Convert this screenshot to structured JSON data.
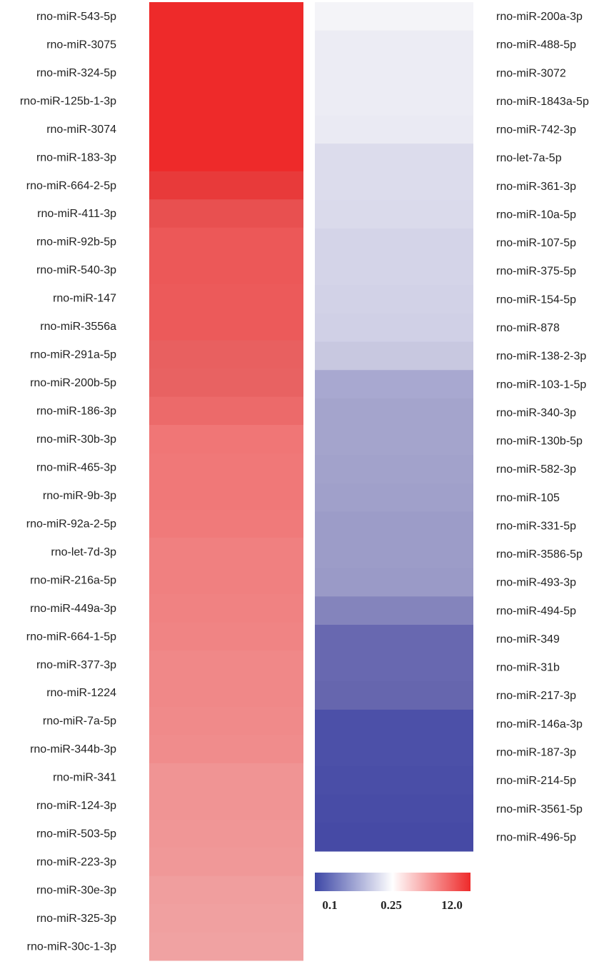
{
  "chart_data": {
    "type": "heatmap",
    "panels": [
      {
        "rows": [
          {
            "label": "rno-miR-543-5p",
            "color": "#ee2a2a"
          },
          {
            "label": "rno-miR-3075",
            "color": "#ee2a2a"
          },
          {
            "label": "rno-miR-324-5p",
            "color": "#ee2a2a"
          },
          {
            "label": "rno-miR-125b-1-3p",
            "color": "#ee2a2a"
          },
          {
            "label": "rno-miR-3074",
            "color": "#ee2a2a"
          },
          {
            "label": "rno-miR-183-3p",
            "color": "#ee2a2a"
          },
          {
            "label": "rno-miR-664-2-5p",
            "color": "#e83a3a"
          },
          {
            "label": "rno-miR-411-3p",
            "color": "#e85050"
          },
          {
            "label": "rno-miR-92b-5p",
            "color": "#ec5858"
          },
          {
            "label": "rno-miR-540-3p",
            "color": "#ec5858"
          },
          {
            "label": "rno-miR-147",
            "color": "#ec5a5a"
          },
          {
            "label": "rno-miR-3556a",
            "color": "#ec5a5a"
          },
          {
            "label": "rno-miR-291a-5p",
            "color": "#e86060"
          },
          {
            "label": "rno-miR-200b-5p",
            "color": "#e86262"
          },
          {
            "label": "rno-miR-186-3p",
            "color": "#ec6a6a"
          },
          {
            "label": "rno-miR-30b-3p",
            "color": "#f07676"
          },
          {
            "label": "rno-miR-465-3p",
            "color": "#f07878"
          },
          {
            "label": "rno-miR-9b-3p",
            "color": "#f07878"
          },
          {
            "label": "rno-miR-92a-2-5p",
            "color": "#f07a7a"
          },
          {
            "label": "rno-let-7d-3p",
            "color": "#f08080"
          },
          {
            "label": "rno-miR-216a-5p",
            "color": "#f08080"
          },
          {
            "label": "rno-miR-449a-3p",
            "color": "#f08282"
          },
          {
            "label": "rno-miR-664-1-5p",
            "color": "#f08484"
          },
          {
            "label": "rno-miR-377-3p",
            "color": "#f08888"
          },
          {
            "label": "rno-miR-1224",
            "color": "#f08888"
          },
          {
            "label": "rno-miR-7a-5p",
            "color": "#f08a8a"
          },
          {
            "label": "rno-miR-344b-3p",
            "color": "#f08c8c"
          },
          {
            "label": "rno-miR-341",
            "color": "#f09494"
          },
          {
            "label": "rno-miR-124-3p",
            "color": "#f09494"
          },
          {
            "label": "rno-miR-503-5p",
            "color": "#f09696"
          },
          {
            "label": "rno-miR-223-3p",
            "color": "#f09898"
          },
          {
            "label": "rno-miR-30e-3p",
            "color": "#f09e9e"
          },
          {
            "label": "rno-miR-325-3p",
            "color": "#f0a0a0"
          },
          {
            "label": "rno-miR-30c-1-3p",
            "color": "#f0a2a2"
          }
        ]
      },
      {
        "rows": [
          {
            "label": "rno-miR-200a-3p",
            "color": "#f4f4f8"
          },
          {
            "label": "rno-miR-488-5p",
            "color": "#ececf4"
          },
          {
            "label": "rno-miR-3072",
            "color": "#ececf4"
          },
          {
            "label": "rno-miR-1843a-5p",
            "color": "#ececf4"
          },
          {
            "label": "rno-miR-742-3p",
            "color": "#eaeaf3"
          },
          {
            "label": "rno-let-7a-5p",
            "color": "#dcdcec"
          },
          {
            "label": "rno-miR-361-3p",
            "color": "#dcdcec"
          },
          {
            "label": "rno-miR-10a-5p",
            "color": "#dadaeb"
          },
          {
            "label": "rno-miR-107-5p",
            "color": "#d4d4e8"
          },
          {
            "label": "rno-miR-375-5p",
            "color": "#d4d4e8"
          },
          {
            "label": "rno-miR-154-5p",
            "color": "#d2d2e7"
          },
          {
            "label": "rno-miR-878",
            "color": "#d0d0e6"
          },
          {
            "label": "rno-miR-138-2-3p",
            "color": "#c8c8e0"
          },
          {
            "label": "rno-miR-103-1-5p",
            "color": "#a8a8d0"
          },
          {
            "label": "rno-miR-340-3p",
            "color": "#a4a4cc"
          },
          {
            "label": "rno-miR-130b-5p",
            "color": "#a4a4cc"
          },
          {
            "label": "rno-miR-582-3p",
            "color": "#a2a2cb"
          },
          {
            "label": "rno-miR-105",
            "color": "#a0a0ca"
          },
          {
            "label": "rno-miR-331-5p",
            "color": "#9c9cc8"
          },
          {
            "label": "rno-miR-3586-5p",
            "color": "#9c9cc8"
          },
          {
            "label": "rno-miR-493-3p",
            "color": "#9a9ac7"
          },
          {
            "label": "rno-miR-494-5p",
            "color": "#8484bc"
          },
          {
            "label": "rno-miR-349",
            "color": "#6868b0"
          },
          {
            "label": "rno-miR-31b",
            "color": "#6868b0"
          },
          {
            "label": "rno-miR-217-3p",
            "color": "#6666ae"
          },
          {
            "label": "rno-miR-146a-3p",
            "color": "#4c50a8"
          },
          {
            "label": "rno-miR-187-3p",
            "color": "#4c50a8"
          },
          {
            "label": "rno-miR-214-5p",
            "color": "#4a4ea7"
          },
          {
            "label": "rno-miR-3561-5p",
            "color": "#484ca6"
          },
          {
            "label": "rno-miR-496-5p",
            "color": "#464aa5"
          }
        ]
      }
    ],
    "colorbar": {
      "colors": [
        "#3d47a6",
        "#ffffff",
        "#ee2a2a"
      ],
      "ticks": [
        0.1,
        0.25,
        {
          "value": 12,
          "label": "12.0"
        }
      ]
    }
  }
}
